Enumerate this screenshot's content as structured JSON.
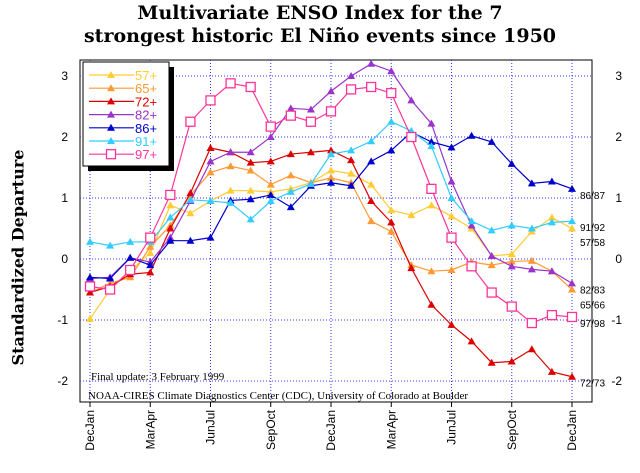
{
  "chart_data": {
    "type": "line",
    "title": "Multivariate ENSO Index for the 7 strongest historic El Niño events since 1950",
    "title_lines": [
      "Multivariate ENSO Index for the 7",
      "strongest historic El Niño events since 1950"
    ],
    "ylabel": "Standardized Departure",
    "xlabel": "",
    "ylim": [
      -2.3,
      3.3
    ],
    "yticks": [
      -2,
      -1,
      0,
      1,
      2,
      3
    ],
    "grid": true,
    "legend_placement": "top-left",
    "x_tick_labels": [
      "DecJan",
      "MarApr",
      "JunJul",
      "SepOct",
      "DecJan",
      "MarApr",
      "JunJul",
      "SepOct",
      "DecJan"
    ],
    "x": [
      "DecJan",
      "JanFeb",
      "FebMar",
      "MarApr",
      "AprMay",
      "MayJun",
      "JunJul",
      "JulAug",
      "AugSep",
      "SepOct",
      "OctNov",
      "NovDec",
      "DecJan",
      "JanFeb",
      "FebMar",
      "MarApr",
      "AprMay",
      "MayJun",
      "JunJul",
      "JulAug",
      "AugSep",
      "SepOct",
      "OctNov",
      "NovDec",
      "DecJan"
    ],
    "series": [
      {
        "name": "57+",
        "end_label": "57/58",
        "color": "#ffcc33",
        "marker": "triangle",
        "values": [
          -0.98,
          -0.5,
          -0.2,
          0.1,
          0.88,
          0.75,
          0.95,
          1.12,
          1.12,
          1.1,
          1.15,
          1.25,
          1.45,
          1.4,
          1.22,
          0.8,
          0.72,
          0.88,
          0.7,
          0.5,
          0.05,
          0.08,
          0.45,
          0.68,
          0.5
        ]
      },
      {
        "name": "65+",
        "end_label": "65/66",
        "color": "#ff9933",
        "marker": "triangle",
        "values": [
          -0.55,
          -0.4,
          -0.3,
          0.2,
          0.55,
          1.05,
          1.42,
          1.52,
          1.45,
          1.22,
          1.37,
          1.25,
          1.33,
          1.25,
          0.62,
          0.45,
          -0.1,
          -0.2,
          -0.18,
          -0.05,
          -0.1,
          -0.04,
          -0.03,
          -0.2,
          -0.5
        ]
      },
      {
        "name": "72+",
        "end_label": "72/73",
        "color": "#dd0000",
        "marker": "triangle",
        "values": [
          -0.55,
          -0.45,
          -0.25,
          -0.22,
          0.5,
          1.08,
          1.82,
          1.75,
          1.58,
          1.6,
          1.72,
          1.75,
          1.78,
          1.62,
          0.95,
          0.6,
          -0.15,
          -0.75,
          -1.08,
          -1.35,
          -1.7,
          -1.68,
          -1.48,
          -1.85,
          -1.93
        ]
      },
      {
        "name": "82+",
        "end_label": "82/83",
        "color": "#9933cc",
        "marker": "triangle",
        "values": [
          -0.32,
          -0.3,
          0.02,
          -0.05,
          0.35,
          0.95,
          1.6,
          1.75,
          1.75,
          2.0,
          2.47,
          2.45,
          2.75,
          3.0,
          3.2,
          3.08,
          2.6,
          2.22,
          1.27,
          0.55,
          0.05,
          -0.12,
          -0.17,
          -0.2,
          -0.4
        ]
      },
      {
        "name": "86+",
        "end_label": "86/87",
        "color": "#0000cc",
        "marker": "triangle",
        "values": [
          -0.3,
          -0.32,
          0.02,
          -0.1,
          0.3,
          0.3,
          0.35,
          0.96,
          0.98,
          1.05,
          0.85,
          1.2,
          1.25,
          1.2,
          1.6,
          1.78,
          2.08,
          1.92,
          1.83,
          2.02,
          1.92,
          1.56,
          1.24,
          1.27,
          1.15
        ]
      },
      {
        "name": "91+",
        "end_label": "91/92",
        "color": "#33ccff",
        "marker": "triangle",
        "values": [
          0.28,
          0.22,
          0.28,
          0.28,
          0.68,
          0.97,
          0.95,
          0.92,
          0.65,
          0.95,
          1.1,
          1.23,
          1.72,
          1.78,
          1.93,
          2.25,
          2.1,
          1.85,
          1.0,
          0.62,
          0.47,
          0.55,
          0.5,
          0.6,
          0.62
        ]
      },
      {
        "name": "97+",
        "end_label": "97/98",
        "color": "#ff3399",
        "marker": "square",
        "values": [
          -0.45,
          -0.5,
          -0.18,
          0.35,
          1.05,
          2.25,
          2.6,
          2.88,
          2.82,
          2.17,
          2.35,
          2.25,
          2.42,
          2.78,
          2.82,
          2.72,
          2.0,
          1.15,
          0.35,
          -0.12,
          -0.55,
          -0.78,
          -1.05,
          -0.92,
          -0.95
        ]
      }
    ],
    "annotations": [
      "Final update:  3 February 1999",
      "NOAA-CIRES Climate Diagnostics Center (CDC), University of Colorado at Boulder"
    ]
  },
  "colors": {
    "grid": "#3333ff"
  }
}
